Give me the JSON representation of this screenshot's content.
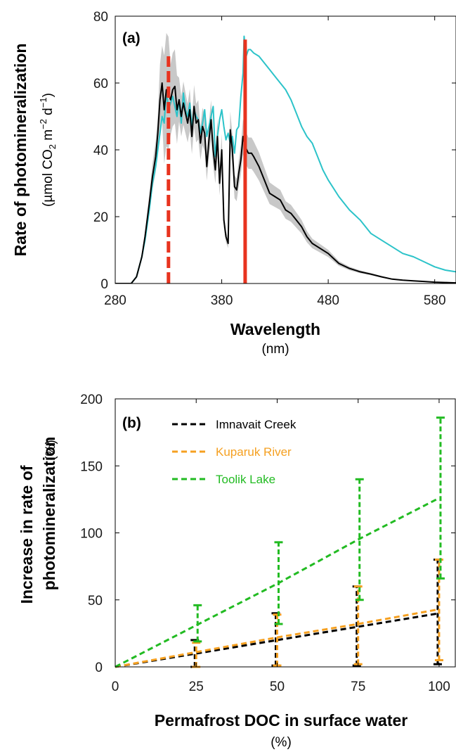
{
  "chart_data": [
    {
      "type": "line",
      "panel_label": "(a)",
      "xlabel": "Wavelength",
      "xunit": "(nm)",
      "ylabel": "Rate of photomineralization",
      "yunit_parts": [
        "(µmol CO",
        "2",
        " m",
        "−2",
        " d",
        "−1",
        ")"
      ],
      "xlim": [
        280,
        600
      ],
      "ylim": [
        0,
        80
      ],
      "xticks": [
        "280",
        "380",
        "480",
        "580"
      ],
      "yticks": [
        "0",
        "20",
        "40",
        "60",
        "80"
      ],
      "colors": {
        "black": "#000000",
        "cyan": "#2cc3c9",
        "band": "#c8c8c8",
        "red": "#e8331f"
      },
      "series": [
        {
          "color": "cyan",
          "x": [
            280,
            295,
            300,
            305,
            308,
            312,
            315,
            318,
            320,
            322,
            324,
            326,
            328,
            330,
            332,
            334,
            336,
            338,
            340,
            342,
            344,
            346,
            348,
            350,
            352,
            354,
            356,
            358,
            360,
            362,
            364,
            366,
            368,
            370,
            372,
            374,
            376,
            378,
            380,
            382,
            384,
            386,
            388,
            390,
            392,
            394,
            396,
            398,
            400,
            401,
            403,
            405,
            407,
            410,
            415,
            420,
            425,
            430,
            435,
            440,
            445,
            450,
            455,
            460,
            465,
            470,
            475,
            480,
            490,
            500,
            510,
            520,
            530,
            540,
            550,
            560,
            570,
            580,
            590,
            600
          ],
          "y": [
            0,
            0,
            2,
            8,
            13,
            22,
            30,
            35,
            40,
            45,
            50,
            48,
            58,
            52,
            54,
            56,
            53,
            50,
            55,
            48,
            57,
            52,
            50,
            54,
            47,
            52,
            50,
            49,
            45,
            48,
            52,
            44,
            47,
            50,
            53,
            38,
            44,
            49,
            52,
            47,
            43,
            45,
            42,
            44,
            39,
            46,
            47,
            56,
            63,
            74,
            68,
            70,
            70,
            69,
            68,
            66,
            64,
            62,
            60,
            58,
            55,
            51,
            47,
            44,
            42,
            38,
            34,
            31,
            26,
            22,
            19,
            15,
            13,
            11,
            9,
            8,
            6.5,
            5,
            4,
            3.5
          ]
        },
        {
          "color": "black",
          "x": [
            280,
            295,
            300,
            305,
            308,
            312,
            315,
            318,
            320,
            322,
            324,
            326,
            328,
            330,
            332,
            334,
            336,
            338,
            340,
            342,
            344,
            346,
            348,
            350,
            352,
            354,
            356,
            358,
            360,
            362,
            364,
            366,
            368,
            370,
            372,
            374,
            376,
            378,
            380,
            382,
            384,
            386,
            388,
            390,
            392,
            394,
            396,
            398,
            400,
            402,
            405,
            408,
            410,
            415,
            420,
            425,
            430,
            435,
            440,
            445,
            450,
            455,
            460,
            465,
            470,
            480,
            490,
            500,
            510,
            520,
            530,
            540,
            550,
            560,
            570,
            580,
            590,
            600
          ],
          "y": [
            0,
            0,
            2,
            8,
            14,
            24,
            32,
            38,
            45,
            55,
            60,
            52,
            58,
            57,
            55,
            58,
            59,
            52,
            55,
            50,
            54,
            51,
            48,
            52,
            44,
            53,
            48,
            49,
            42,
            47,
            45,
            35,
            43,
            49,
            40,
            34,
            44,
            30,
            40,
            19,
            14,
            12,
            46,
            40,
            29,
            28,
            33,
            37,
            44,
            41,
            39,
            39,
            38,
            35,
            31,
            27,
            26,
            25,
            22,
            21,
            19,
            17,
            14,
            12,
            11,
            9,
            6,
            4.5,
            3.5,
            2.8,
            2,
            1.3,
            1,
            0.8,
            0.6,
            0.4,
            0.3,
            0.2
          ]
        }
      ],
      "markers": [
        {
          "x": 330,
          "ymax": 68,
          "style": "dashed",
          "color": "red"
        },
        {
          "x": 402,
          "ymax": 73,
          "style": "solid",
          "color": "red"
        }
      ]
    },
    {
      "type": "line",
      "panel_label": "(b)",
      "xlabel": "Permafrost DOC in surface water",
      "xunit": "(%)",
      "ylabel_lines": [
        "Increase in rate of",
        "photomineralization"
      ],
      "yunit": "(%)",
      "xlim": [
        0,
        105
      ],
      "ylim": [
        0,
        200
      ],
      "xticks": [
        "0",
        "25",
        "50",
        "75",
        "100"
      ],
      "yticks": [
        "0",
        "50",
        "100",
        "150",
        "200"
      ],
      "x": [
        0,
        25,
        50,
        75,
        100
      ],
      "series": [
        {
          "name": "Imnavait Creek",
          "color": "#000000",
          "values": [
            0,
            10,
            20,
            30,
            40
          ],
          "err_low": [
            0,
            0,
            1,
            1,
            2
          ],
          "err_high": [
            0,
            20,
            40,
            60,
            80
          ]
        },
        {
          "name": "Kuparuk River",
          "color": "#f5a021",
          "values": [
            0,
            11,
            22,
            32,
            43
          ],
          "err_low": [
            0,
            0,
            1,
            2,
            5
          ],
          "err_high": [
            0,
            18,
            39,
            60,
            80
          ]
        },
        {
          "name": "Toolik Lake",
          "color": "#22bb22",
          "values": [
            0,
            31,
            62,
            95,
            126
          ],
          "err_low": [
            0,
            19,
            32,
            50,
            66
          ],
          "err_high": [
            0,
            46,
            93,
            140,
            186
          ]
        }
      ]
    }
  ]
}
